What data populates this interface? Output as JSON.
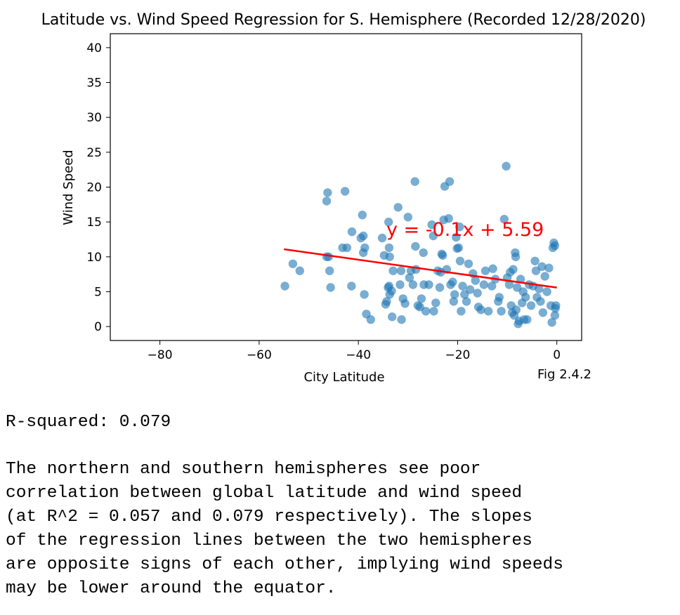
{
  "chart_data": {
    "type": "scatter",
    "title": "Latitude vs. Wind Speed Regression for S. Hemisphere (Recorded 12/28/2020)",
    "xlabel": "City Latitude",
    "ylabel": "Wind Speed",
    "xlim": [
      -90,
      5
    ],
    "ylim": [
      -2,
      42
    ],
    "xticks": [
      -80,
      -60,
      -40,
      -20,
      0
    ],
    "yticks": [
      0,
      5,
      10,
      15,
      20,
      25,
      30,
      35,
      40
    ],
    "grid": false,
    "point_color": "#1f77b4",
    "line_color": "#ff0000",
    "regression": {
      "slope": -0.1,
      "intercept": 5.59,
      "x_range": [
        -55,
        0
      ],
      "equation": "y = -0.1x + 5.59"
    },
    "annotation": "Fig 2.4.2",
    "points": [
      [
        -54.8,
        5.8
      ],
      [
        -53.2,
        9.0
      ],
      [
        -51.8,
        8.0
      ],
      [
        -46.4,
        18.0
      ],
      [
        -46.2,
        19.2
      ],
      [
        -46.4,
        10.0
      ],
      [
        -46.0,
        10.0
      ],
      [
        -45.8,
        8.0
      ],
      [
        -45.6,
        5.6
      ],
      [
        -42.7,
        19.4
      ],
      [
        -41.4,
        5.8
      ],
      [
        -41.3,
        13.6
      ],
      [
        -42.3,
        11.3
      ],
      [
        -43.2,
        11.3
      ],
      [
        -39.2,
        16.0
      ],
      [
        -39.5,
        12.7
      ],
      [
        -39.0,
        13.0
      ],
      [
        -38.7,
        11.3
      ],
      [
        -39.0,
        10.6
      ],
      [
        -38.8,
        4.6
      ],
      [
        -38.4,
        1.8
      ],
      [
        -37.5,
        1.0
      ],
      [
        -35.2,
        12.7
      ],
      [
        -34.8,
        10.2
      ],
      [
        -34.5,
        3.2
      ],
      [
        -34.3,
        3.6
      ],
      [
        -33.9,
        15.0
      ],
      [
        -33.8,
        11.3
      ],
      [
        -33.7,
        10.0
      ],
      [
        -34.0,
        5.6
      ],
      [
        -33.8,
        5.8
      ],
      [
        -33.7,
        4.6
      ],
      [
        -33.3,
        5.1
      ],
      [
        -33.2,
        1.4
      ],
      [
        -33.0,
        8.0
      ],
      [
        -32.0,
        17.1
      ],
      [
        -31.6,
        6.0
      ],
      [
        -31.4,
        8.0
      ],
      [
        -31.3,
        1.0
      ],
      [
        -31.0,
        4.0
      ],
      [
        -30.6,
        3.3
      ],
      [
        -30.0,
        15.7
      ],
      [
        -29.7,
        7.0
      ],
      [
        -29.4,
        8.0
      ],
      [
        -29.0,
        6.0
      ],
      [
        -28.6,
        20.8
      ],
      [
        -28.5,
        11.5
      ],
      [
        -28.4,
        8.2
      ],
      [
        -28.0,
        3.0
      ],
      [
        -27.6,
        2.8
      ],
      [
        -27.3,
        4.0
      ],
      [
        -26.9,
        10.6
      ],
      [
        -26.8,
        6.0
      ],
      [
        -26.4,
        2.2
      ],
      [
        -25.8,
        6.0
      ],
      [
        -25.2,
        14.6
      ],
      [
        -24.9,
        13.0
      ],
      [
        -24.8,
        2.2
      ],
      [
        -24.4,
        3.4
      ],
      [
        -24.0,
        8.0
      ],
      [
        -23.6,
        5.6
      ],
      [
        -23.4,
        7.8
      ],
      [
        -23.2,
        10.4
      ],
      [
        -23.0,
        10.2
      ],
      [
        -22.8,
        15.3
      ],
      [
        -22.6,
        20.1
      ],
      [
        -22.2,
        8.2
      ],
      [
        -21.8,
        15.5
      ],
      [
        -21.6,
        20.8
      ],
      [
        -21.4,
        6.0
      ],
      [
        -21.0,
        6.4
      ],
      [
        -20.8,
        3.6
      ],
      [
        -20.6,
        4.6
      ],
      [
        -20.3,
        12.8
      ],
      [
        -20.1,
        11.2
      ],
      [
        -19.8,
        11.3
      ],
      [
        -19.6,
        14.3
      ],
      [
        -19.5,
        9.4
      ],
      [
        -19.3,
        2.2
      ],
      [
        -19.0,
        5.8
      ],
      [
        -18.6,
        4.6
      ],
      [
        -18.2,
        3.6
      ],
      [
        -17.8,
        9.0
      ],
      [
        -17.5,
        5.3
      ],
      [
        -16.9,
        7.6
      ],
      [
        -16.4,
        6.6
      ],
      [
        -16.0,
        4.8
      ],
      [
        -15.8,
        2.8
      ],
      [
        -15.3,
        2.4
      ],
      [
        -14.7,
        6.0
      ],
      [
        -14.4,
        8.0
      ],
      [
        -13.8,
        2.2
      ],
      [
        -13.1,
        5.8
      ],
      [
        -12.9,
        8.3
      ],
      [
        -12.4,
        6.8
      ],
      [
        -11.8,
        3.6
      ],
      [
        -11.6,
        4.2
      ],
      [
        -11.2,
        2.2
      ],
      [
        -10.6,
        15.4
      ],
      [
        -10.2,
        23.0
      ],
      [
        -10.0,
        7.0
      ],
      [
        -9.6,
        6.0
      ],
      [
        -9.4,
        7.8
      ],
      [
        -9.2,
        3.0
      ],
      [
        -9.0,
        2.0
      ],
      [
        -8.8,
        8.2
      ],
      [
        -8.6,
        1.6
      ],
      [
        -8.4,
        10.6
      ],
      [
        -8.3,
        10.0
      ],
      [
        -8.2,
        2.4
      ],
      [
        -8.0,
        5.6
      ],
      [
        -7.8,
        0.4
      ],
      [
        -7.6,
        0.8
      ],
      [
        -7.3,
        6.8
      ],
      [
        -7.0,
        3.4
      ],
      [
        -6.8,
        5.0
      ],
      [
        -6.6,
        1.0
      ],
      [
        -6.3,
        4.2
      ],
      [
        -6.0,
        1.0
      ],
      [
        -5.6,
        6.0
      ],
      [
        -5.2,
        3.0
      ],
      [
        -4.8,
        5.8
      ],
      [
        -4.4,
        9.4
      ],
      [
        -4.2,
        8.0
      ],
      [
        -4.0,
        4.2
      ],
      [
        -3.6,
        5.4
      ],
      [
        -3.3,
        3.6
      ],
      [
        -3.0,
        8.6
      ],
      [
        -2.8,
        2.0
      ],
      [
        -2.4,
        7.2
      ],
      [
        -2.0,
        5.0
      ],
      [
        -1.6,
        8.4
      ],
      [
        -1.2,
        3.0
      ],
      [
        -1.0,
        0.6
      ],
      [
        -0.8,
        11.3
      ],
      [
        -0.6,
        12.0
      ],
      [
        -0.4,
        11.6
      ],
      [
        -0.3,
        2.6
      ],
      [
        -0.2,
        3.0
      ],
      [
        -0.4,
        1.6
      ]
    ]
  },
  "text": {
    "r_squared": "R-squared: 0.079",
    "paragraph": "The northern and southern hemispheres see poor\ncorrelation between global latitude and wind speed\n(at R^2 = 0.057 and 0.079 respectively). The slopes\nof the regression lines between the two hemispheres\nare opposite signs of each other, implying wind speeds\nmay be lower around the equator."
  }
}
